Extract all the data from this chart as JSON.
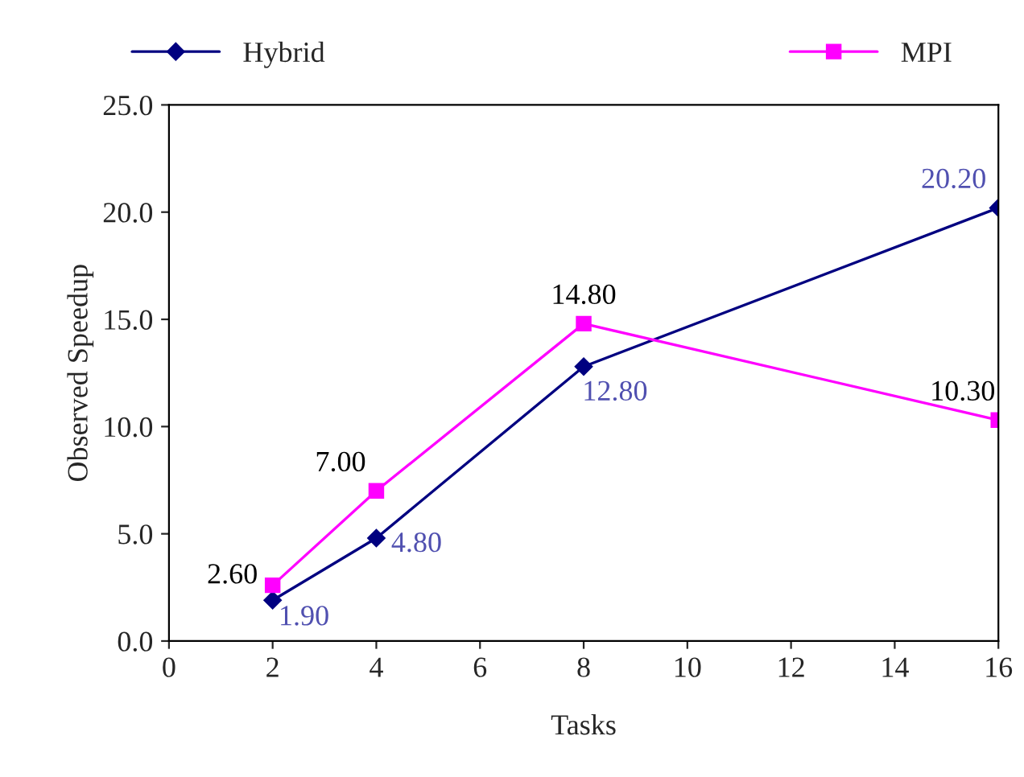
{
  "chart_data": {
    "type": "line",
    "xlabel": "Tasks",
    "ylabel": "Observed Speedup",
    "x": [
      2,
      4,
      8,
      16
    ],
    "series": [
      {
        "name": "Hybrid",
        "color": "#000080",
        "marker": "diamond",
        "values": [
          1.9,
          4.8,
          12.8,
          20.2
        ],
        "value_labels": [
          "1.90",
          "4.80",
          "12.80",
          "20.20"
        ]
      },
      {
        "name": "MPI",
        "color": "#ff00ff",
        "marker": "square",
        "values": [
          2.6,
          7.0,
          14.8,
          10.3
        ],
        "value_labels": [
          "2.60",
          "7.00",
          "14.80",
          "10.30"
        ]
      }
    ],
    "xlim": [
      0,
      16
    ],
    "xticks": [
      0,
      2,
      4,
      6,
      8,
      10,
      12,
      14,
      16
    ],
    "ylim": [
      0,
      25
    ],
    "yticks": [
      {
        "value": 0,
        "label": "0.0"
      },
      {
        "value": 5,
        "label": "5.0"
      },
      {
        "value": 10,
        "label": "10.0"
      },
      {
        "value": 15,
        "label": "15.0"
      },
      {
        "value": 20,
        "label": "20.0"
      },
      {
        "value": 25,
        "label": "25.0"
      }
    ],
    "grid": false,
    "legend": "top",
    "line_style": "solid"
  }
}
